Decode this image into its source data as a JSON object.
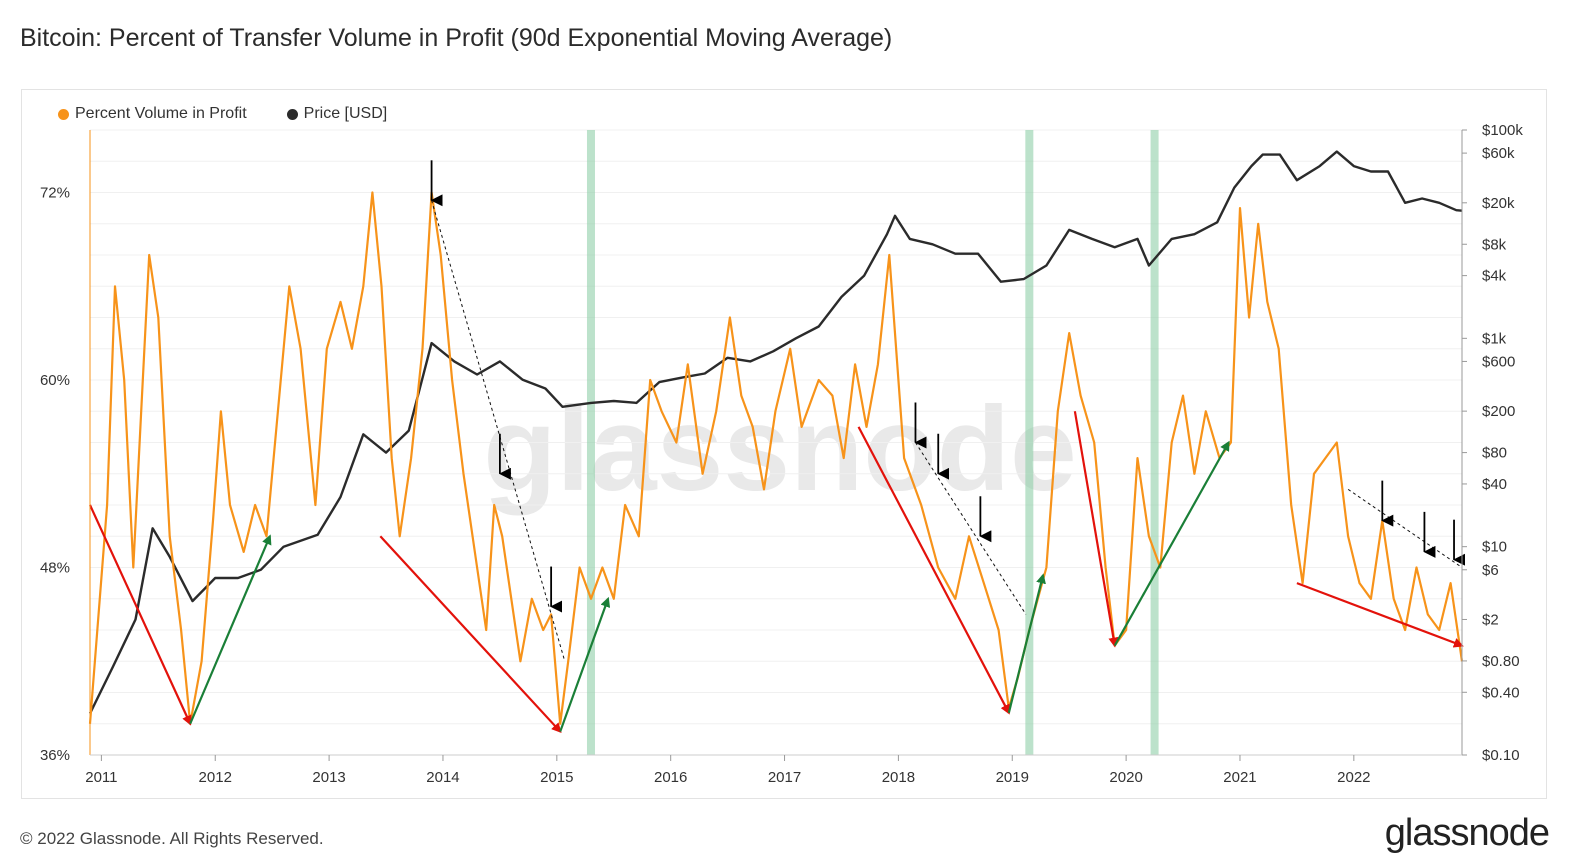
{
  "title": "Bitcoin: Percent of Transfer Volume in Profit (90d Exponential Moving Average)",
  "footer": "© 2022 Glassnode. All Rights Reserved.",
  "brand": "glassnode",
  "watermark": "glassnode",
  "colors": {
    "profit": "#f7931a",
    "price": "#2b2b2b",
    "red_arrow": "#e3120b",
    "green_arrow": "#1a7f37",
    "highlight": "#8fcfa8"
  },
  "chart_data": {
    "type": "line",
    "title": "Bitcoin: Percent of Transfer Volume in Profit (90d Exponential Moving Average)",
    "legend": [
      "Percent Volume in Profit",
      "Price [USD]"
    ],
    "legend_position": "top-left",
    "x_ticks": [
      "2011",
      "2012",
      "2013",
      "2014",
      "2015",
      "2016",
      "2017",
      "2018",
      "2019",
      "2020",
      "2021",
      "2022"
    ],
    "xlim": [
      2010.9,
      2022.95
    ],
    "left_axis": {
      "ticks": [
        "72%",
        "60%",
        "48%",
        "36%"
      ],
      "tick_values": [
        72,
        60,
        48,
        36
      ],
      "ylim": [
        36,
        76
      ]
    },
    "right_axis": {
      "scale": "log",
      "ticks": [
        "$100k",
        "$60k",
        "$20k",
        "$8k",
        "$4k",
        "$1k",
        "$600",
        "$200",
        "$80",
        "$40",
        "$10",
        "$6",
        "$2",
        "$0.80",
        "$0.40",
        "$0.10"
      ],
      "tick_values": [
        100000,
        60000,
        20000,
        8000,
        4000,
        1000,
        600,
        200,
        80,
        40,
        10,
        6,
        2,
        0.8,
        0.4,
        0.1
      ],
      "ylim": [
        0.1,
        100000
      ]
    },
    "highlight_periods": [
      2015.3,
      2019.15,
      2020.25
    ],
    "series": [
      {
        "name": "Percent Volume in Profit",
        "axis": "left",
        "points": [
          [
            2010.9,
            38
          ],
          [
            2011.05,
            52
          ],
          [
            2011.12,
            66
          ],
          [
            2011.2,
            60
          ],
          [
            2011.28,
            48
          ],
          [
            2011.35,
            58
          ],
          [
            2011.42,
            68
          ],
          [
            2011.5,
            64
          ],
          [
            2011.6,
            50
          ],
          [
            2011.7,
            44
          ],
          [
            2011.78,
            38
          ],
          [
            2011.88,
            42
          ],
          [
            2011.98,
            51
          ],
          [
            2012.05,
            58
          ],
          [
            2012.13,
            52
          ],
          [
            2012.25,
            49
          ],
          [
            2012.35,
            52
          ],
          [
            2012.45,
            50
          ],
          [
            2012.55,
            58
          ],
          [
            2012.65,
            66
          ],
          [
            2012.75,
            62
          ],
          [
            2012.88,
            52
          ],
          [
            2012.98,
            62
          ],
          [
            2013.1,
            65
          ],
          [
            2013.2,
            62
          ],
          [
            2013.3,
            66
          ],
          [
            2013.38,
            72
          ],
          [
            2013.46,
            66
          ],
          [
            2013.55,
            55
          ],
          [
            2013.62,
            50
          ],
          [
            2013.72,
            55
          ],
          [
            2013.82,
            62
          ],
          [
            2013.9,
            72
          ],
          [
            2013.98,
            68
          ],
          [
            2014.08,
            60
          ],
          [
            2014.18,
            54
          ],
          [
            2014.3,
            48
          ],
          [
            2014.38,
            44
          ],
          [
            2014.45,
            52
          ],
          [
            2014.52,
            50
          ],
          [
            2014.6,
            46
          ],
          [
            2014.68,
            42
          ],
          [
            2014.78,
            46
          ],
          [
            2014.88,
            44
          ],
          [
            2014.95,
            45
          ],
          [
            2015.03,
            38
          ],
          [
            2015.1,
            42
          ],
          [
            2015.2,
            48
          ],
          [
            2015.3,
            46
          ],
          [
            2015.4,
            48
          ],
          [
            2015.5,
            46
          ],
          [
            2015.6,
            52
          ],
          [
            2015.72,
            50
          ],
          [
            2015.82,
            60
          ],
          [
            2015.92,
            58
          ],
          [
            2016.05,
            56
          ],
          [
            2016.15,
            61
          ],
          [
            2016.28,
            54
          ],
          [
            2016.4,
            58
          ],
          [
            2016.52,
            64
          ],
          [
            2016.62,
            59
          ],
          [
            2016.72,
            57
          ],
          [
            2016.82,
            53
          ],
          [
            2016.92,
            58
          ],
          [
            2017.05,
            62
          ],
          [
            2017.15,
            57
          ],
          [
            2017.3,
            60
          ],
          [
            2017.42,
            59
          ],
          [
            2017.52,
            55
          ],
          [
            2017.62,
            61
          ],
          [
            2017.72,
            57
          ],
          [
            2017.82,
            61
          ],
          [
            2017.92,
            68
          ],
          [
            2018.05,
            55
          ],
          [
            2018.2,
            52
          ],
          [
            2018.35,
            48
          ],
          [
            2018.5,
            46
          ],
          [
            2018.62,
            50
          ],
          [
            2018.75,
            47
          ],
          [
            2018.88,
            44
          ],
          [
            2018.97,
            39
          ],
          [
            2019.05,
            41
          ],
          [
            2019.15,
            44
          ],
          [
            2019.3,
            48
          ],
          [
            2019.4,
            58
          ],
          [
            2019.5,
            63
          ],
          [
            2019.6,
            59
          ],
          [
            2019.72,
            56
          ],
          [
            2019.82,
            48
          ],
          [
            2019.9,
            43
          ],
          [
            2020.0,
            44
          ],
          [
            2020.1,
            55
          ],
          [
            2020.2,
            50
          ],
          [
            2020.3,
            48
          ],
          [
            2020.4,
            56
          ],
          [
            2020.5,
            59
          ],
          [
            2020.6,
            54
          ],
          [
            2020.7,
            58
          ],
          [
            2020.82,
            55
          ],
          [
            2020.92,
            56
          ],
          [
            2021.0,
            71
          ],
          [
            2021.08,
            64
          ],
          [
            2021.16,
            70
          ],
          [
            2021.24,
            65
          ],
          [
            2021.34,
            62
          ],
          [
            2021.45,
            52
          ],
          [
            2021.55,
            47
          ],
          [
            2021.65,
            54
          ],
          [
            2021.75,
            55
          ],
          [
            2021.85,
            56
          ],
          [
            2021.95,
            50
          ],
          [
            2022.05,
            47
          ],
          [
            2022.15,
            46
          ],
          [
            2022.25,
            51
          ],
          [
            2022.35,
            46
          ],
          [
            2022.45,
            44
          ],
          [
            2022.55,
            48
          ],
          [
            2022.65,
            45
          ],
          [
            2022.75,
            44
          ],
          [
            2022.85,
            47
          ],
          [
            2022.95,
            42
          ]
        ]
      },
      {
        "name": "Price [USD]",
        "axis": "right",
        "points": [
          [
            2010.9,
            0.25
          ],
          [
            2011.1,
            0.7
          ],
          [
            2011.3,
            2
          ],
          [
            2011.45,
            15
          ],
          [
            2011.6,
            8
          ],
          [
            2011.8,
            3
          ],
          [
            2012.0,
            5
          ],
          [
            2012.2,
            5
          ],
          [
            2012.4,
            6
          ],
          [
            2012.6,
            10
          ],
          [
            2012.9,
            13
          ],
          [
            2013.1,
            30
          ],
          [
            2013.3,
            120
          ],
          [
            2013.5,
            80
          ],
          [
            2013.7,
            130
          ],
          [
            2013.9,
            900
          ],
          [
            2014.1,
            600
          ],
          [
            2014.3,
            450
          ],
          [
            2014.5,
            600
          ],
          [
            2014.7,
            400
          ],
          [
            2014.9,
            330
          ],
          [
            2015.05,
            220
          ],
          [
            2015.3,
            240
          ],
          [
            2015.5,
            250
          ],
          [
            2015.7,
            240
          ],
          [
            2015.9,
            380
          ],
          [
            2016.1,
            420
          ],
          [
            2016.3,
            460
          ],
          [
            2016.5,
            650
          ],
          [
            2016.7,
            600
          ],
          [
            2016.9,
            750
          ],
          [
            2017.1,
            1000
          ],
          [
            2017.3,
            1300
          ],
          [
            2017.5,
            2500
          ],
          [
            2017.7,
            4000
          ],
          [
            2017.9,
            10000
          ],
          [
            2017.97,
            15000
          ],
          [
            2018.1,
            9000
          ],
          [
            2018.3,
            8000
          ],
          [
            2018.5,
            6500
          ],
          [
            2018.7,
            6500
          ],
          [
            2018.9,
            3500
          ],
          [
            2019.1,
            3700
          ],
          [
            2019.3,
            5000
          ],
          [
            2019.5,
            11000
          ],
          [
            2019.7,
            9000
          ],
          [
            2019.9,
            7500
          ],
          [
            2020.1,
            9000
          ],
          [
            2020.2,
            5000
          ],
          [
            2020.4,
            9000
          ],
          [
            2020.6,
            10000
          ],
          [
            2020.8,
            13000
          ],
          [
            2020.95,
            28000
          ],
          [
            2021.1,
            45000
          ],
          [
            2021.2,
            58000
          ],
          [
            2021.35,
            58000
          ],
          [
            2021.5,
            33000
          ],
          [
            2021.7,
            45000
          ],
          [
            2021.85,
            62000
          ],
          [
            2022.0,
            45000
          ],
          [
            2022.15,
            40000
          ],
          [
            2022.3,
            40000
          ],
          [
            2022.45,
            20000
          ],
          [
            2022.6,
            22000
          ],
          [
            2022.75,
            20000
          ],
          [
            2022.9,
            17000
          ],
          [
            2022.95,
            16800
          ]
        ]
      }
    ],
    "annotations": {
      "red_arrows": [
        [
          [
            2010.9,
            52
          ],
          [
            2011.78,
            38
          ]
        ],
        [
          [
            2013.45,
            50
          ],
          [
            2015.03,
            37.5
          ]
        ],
        [
          [
            2017.65,
            57
          ],
          [
            2018.97,
            38.7
          ]
        ],
        [
          [
            2019.55,
            58
          ],
          [
            2019.9,
            43
          ]
        ],
        [
          [
            2021.5,
            47
          ],
          [
            2022.95,
            43
          ]
        ]
      ],
      "green_arrows": [
        [
          [
            2011.78,
            38
          ],
          [
            2012.48,
            50
          ]
        ],
        [
          [
            2015.03,
            37.5
          ],
          [
            2015.45,
            46
          ]
        ],
        [
          [
            2018.97,
            38.7
          ],
          [
            2019.27,
            47.5
          ]
        ],
        [
          [
            2019.9,
            43
          ],
          [
            2020.9,
            56
          ]
        ]
      ],
      "down_arrows": [
        [
          2013.9,
          71.5
        ],
        [
          2014.5,
          54
        ],
        [
          2014.95,
          45.5
        ],
        [
          2018.15,
          56
        ],
        [
          2018.35,
          54
        ],
        [
          2018.72,
          50
        ],
        [
          2022.25,
          51
        ],
        [
          2022.62,
          49
        ],
        [
          2022.88,
          48.5
        ]
      ],
      "dashed_lines": [
        [
          [
            2013.9,
            71.5
          ],
          [
            2015.07,
            42
          ]
        ],
        [
          [
            2018.15,
            56
          ],
          [
            2019.12,
            45
          ]
        ],
        [
          [
            2021.95,
            53
          ],
          [
            2022.95,
            48
          ]
        ]
      ]
    }
  }
}
